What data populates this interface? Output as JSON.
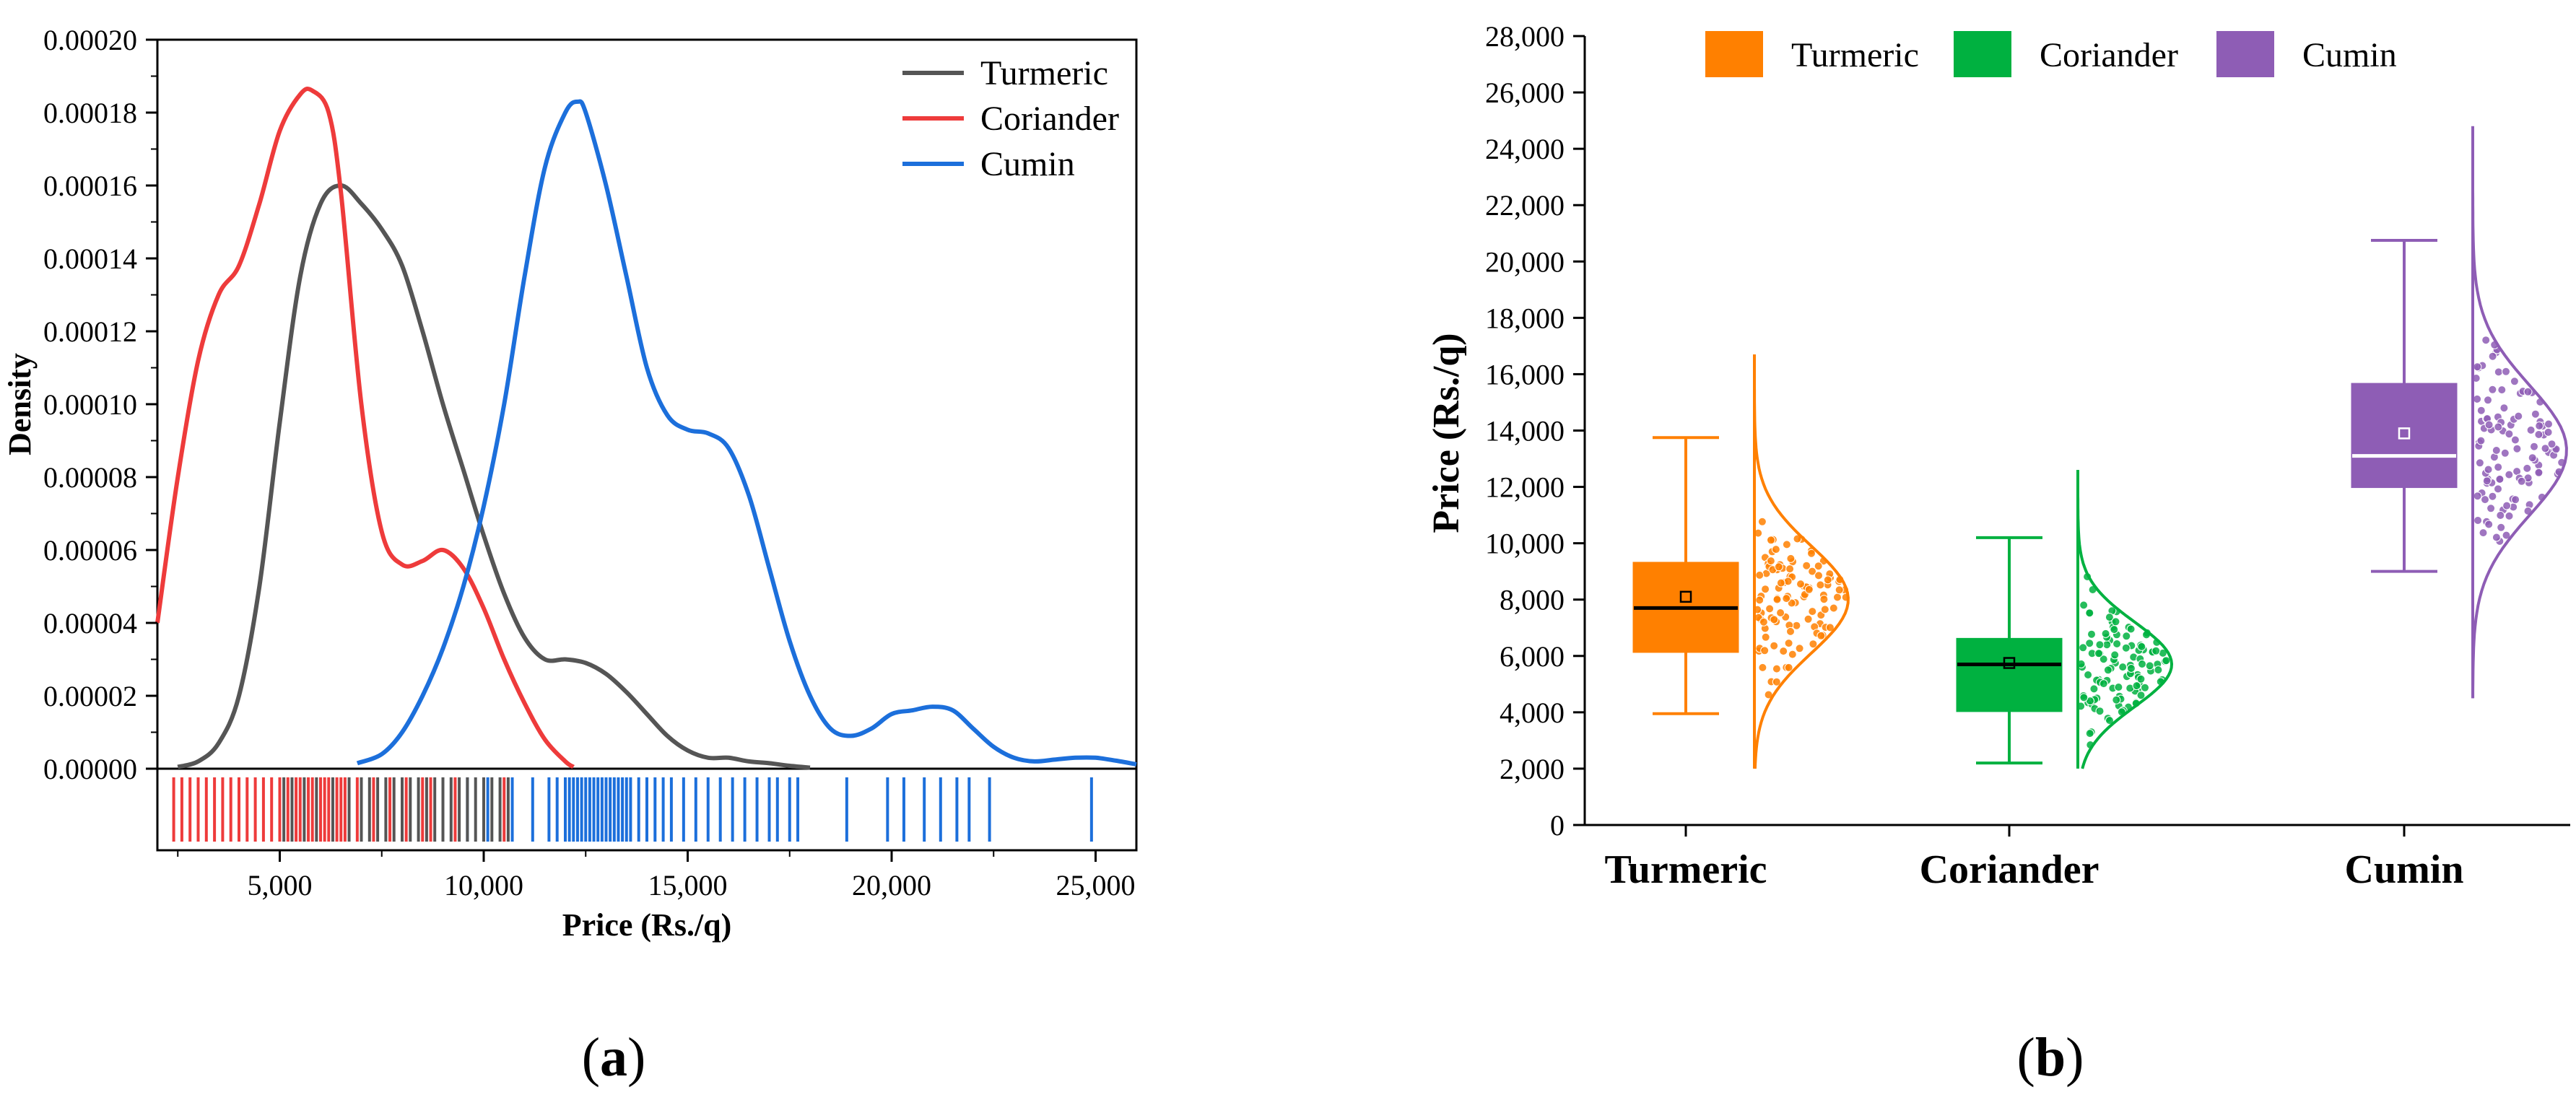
{
  "panel_labels": {
    "a": "a",
    "b": "b"
  },
  "chart_data": [
    {
      "type": "area",
      "panel": "a",
      "title": "",
      "xlabel": "Price (Rs./q)",
      "ylabel": "Density",
      "xlim": [
        2000,
        26000
      ],
      "ylim": [
        0,
        0.0002
      ],
      "x_ticks": [
        5000,
        10000,
        15000,
        20000,
        25000
      ],
      "x_tick_labels": [
        "5,000",
        "10,000",
        "15,000",
        "20,000",
        "25,000"
      ],
      "y_ticks": [
        0,
        2e-05,
        4e-05,
        6e-05,
        8e-05,
        0.0001,
        0.00012,
        0.00014,
        0.00016,
        0.00018,
        0.0002
      ],
      "y_tick_labels": [
        "0.00000",
        "0.00002",
        "0.00004",
        "0.00006",
        "0.00008",
        "0.00010",
        "0.00012",
        "0.00014",
        "0.00016",
        "0.00018",
        "0.00020"
      ],
      "legend_position": "top-right",
      "series": [
        {
          "name": "Turmeric",
          "color": "#555555",
          "x": [
            2500,
            3000,
            3500,
            4000,
            4500,
            5000,
            5500,
            6000,
            6500,
            7000,
            7500,
            8000,
            8500,
            9000,
            9500,
            10000,
            10500,
            11000,
            11500,
            12000,
            12500,
            13000,
            13500,
            14000,
            14500,
            15000,
            15500,
            16000,
            16500,
            17000,
            17500,
            18000
          ],
          "y": [
            5e-07,
            2e-06,
            7e-06,
            2e-05,
            5e-05,
            9.5e-05,
            0.000135,
            0.000155,
            0.00016,
            0.000155,
            0.000148,
            0.000138,
            0.00012,
            0.0001,
            8.2e-05,
            6.4e-05,
            4.8e-05,
            3.6e-05,
            3e-05,
            3e-05,
            2.9e-05,
            2.6e-05,
            2.1e-05,
            1.5e-05,
            9e-06,
            5e-06,
            3e-06,
            3e-06,
            2e-06,
            1.5e-06,
            8e-07,
            3e-07
          ]
        },
        {
          "name": "Coriander",
          "color": "#EE3B3B",
          "x": [
            2000,
            2500,
            3000,
            3500,
            4000,
            4500,
            5000,
            5500,
            5800,
            6200,
            6500,
            7000,
            7500,
            8000,
            8500,
            9000,
            9500,
            10000,
            10500,
            11000,
            11500,
            12000,
            12200
          ],
          "y": [
            4e-05,
            8e-05,
            0.000112,
            0.00013,
            0.000138,
            0.000155,
            0.000175,
            0.000185,
            0.000186,
            0.00018,
            0.000158,
            0.0001,
            6.5e-05,
            5.6e-05,
            5.7e-05,
            6e-05,
            5.5e-05,
            4.4e-05,
            3e-05,
            1.8e-05,
            8e-06,
            2e-06,
            5e-07
          ]
        },
        {
          "name": "Cumin",
          "color": "#1C6FDB",
          "x": [
            6900,
            7500,
            8000,
            8500,
            9000,
            9500,
            10000,
            10500,
            11000,
            11500,
            12000,
            12300,
            12500,
            13000,
            13500,
            14000,
            14500,
            15000,
            15500,
            16000,
            16500,
            17000,
            17500,
            18000,
            18500,
            19000,
            19500,
            20000,
            20500,
            21000,
            21500,
            22000,
            22500,
            23000,
            23500,
            24000,
            24500,
            25000,
            25500,
            26000
          ],
          "y": [
            1.5e-06,
            4e-06,
            1e-05,
            2e-05,
            3.3e-05,
            5e-05,
            7.2e-05,
            0.0001,
            0.000135,
            0.000165,
            0.00018,
            0.000183,
            0.00018,
            0.00016,
            0.000135,
            0.00011,
            9.7e-05,
            9.3e-05,
            9.2e-05,
            8.8e-05,
            7.5e-05,
            5.5e-05,
            3.5e-05,
            2e-05,
            1.1e-05,
            9e-06,
            1.1e-05,
            1.5e-05,
            1.6e-05,
            1.7e-05,
            1.6e-05,
            1.1e-05,
            6e-06,
            3e-06,
            2e-06,
            2.5e-06,
            3e-06,
            3e-06,
            2.2e-06,
            1.2e-06
          ]
        }
      ],
      "rug": {
        "Turmeric": [
          5100,
          5300,
          5600,
          5900,
          6300,
          6700,
          7000,
          7200,
          7400,
          7600,
          7800,
          8000,
          8200,
          8400,
          8600,
          8800,
          9000,
          9200,
          9400,
          9600,
          9800,
          10000,
          10200,
          10400,
          10600
        ],
        "Coriander": [
          2400,
          2600,
          2800,
          3000,
          3200,
          3400,
          3600,
          3800,
          4000,
          4200,
          4400,
          4600,
          4800,
          5000,
          5200,
          5400,
          5500,
          5700,
          5800,
          6000,
          6100,
          6200,
          6400,
          6500,
          6600,
          6900,
          7300,
          7700,
          8100,
          8500,
          8700,
          9000,
          9300,
          10500
        ],
        "Cumin": [
          9600,
          10100,
          10700,
          11200,
          11600,
          11800,
          12000,
          12100,
          12200,
          12300,
          12400,
          12500,
          12600,
          12700,
          12800,
          12900,
          13000,
          13100,
          13200,
          13300,
          13400,
          13500,
          13600,
          13800,
          14000,
          14200,
          14400,
          14600,
          14900,
          15200,
          15500,
          15800,
          16100,
          16400,
          16700,
          17000,
          17200,
          17500,
          17700,
          18900,
          19900,
          20300,
          20800,
          21200,
          21600,
          21900,
          22400,
          24900
        ]
      }
    },
    {
      "type": "box",
      "panel": "b",
      "title": "",
      "xlabel": "",
      "ylabel": "Price (Rs./q)",
      "ylim": [
        0,
        28000
      ],
      "y_ticks": [
        0,
        2000,
        4000,
        6000,
        8000,
        10000,
        12000,
        14000,
        16000,
        18000,
        20000,
        22000,
        24000,
        26000,
        28000
      ],
      "y_tick_labels": [
        "0",
        "2,000",
        "4,000",
        "6,000",
        "8,000",
        "10,000",
        "12,000",
        "14,000",
        "16,000",
        "18,000",
        "20,000",
        "22,000",
        "24,000",
        "26,000",
        "28,000"
      ],
      "categories": [
        "Turmeric",
        "Coriander",
        "Cumin"
      ],
      "legend_position": "top",
      "series": [
        {
          "name": "Turmeric",
          "color": "#FF8000",
          "median_color": "#000000",
          "whisker_low": 3950,
          "q1": 6150,
          "median": 7700,
          "q3": 9300,
          "whisker_high": 13750,
          "mean": 8100,
          "points_range": [
            2000,
            16700
          ],
          "density_peak": 8000,
          "density_sd": 1900
        },
        {
          "name": "Coriander",
          "color": "#00B140",
          "median_color": "#000000",
          "whisker_low": 2200,
          "q1": 4050,
          "median": 5700,
          "q3": 6600,
          "whisker_high": 10200,
          "mean": 5750,
          "points_range": [
            2000,
            12600
          ],
          "density_peak": 5700,
          "density_sd": 1500
        },
        {
          "name": "Cumin",
          "color": "#8E5DB5",
          "median_color": "#FFFFFF",
          "whisker_low": 9000,
          "q1": 12000,
          "median": 13100,
          "q3": 15650,
          "whisker_high": 20750,
          "mean": 13900,
          "points_range": [
            4500,
            24800
          ],
          "density_peak": 13300,
          "density_sd": 2300
        }
      ]
    }
  ]
}
